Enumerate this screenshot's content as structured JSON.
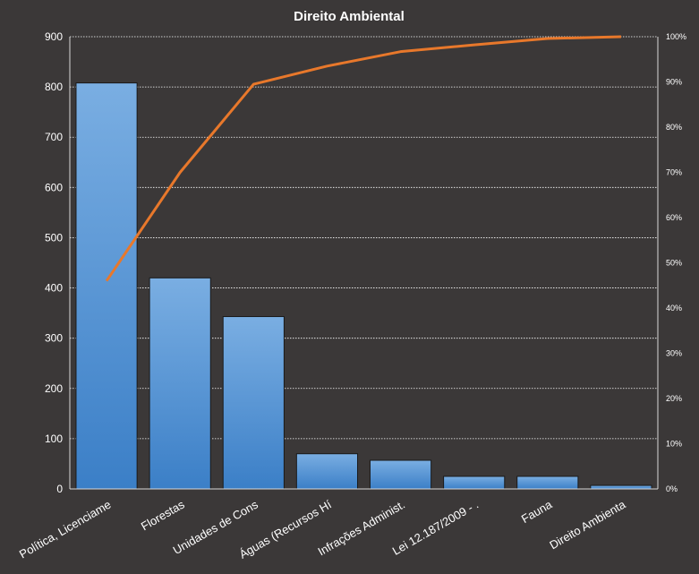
{
  "chart_data": {
    "type": "bar",
    "title": "Direito  Ambiental",
    "categories": [
      "Política, Licenciame",
      "Florestas",
      "Unidades de Cons",
      "Águas (Recursos Hí",
      "Infrações Administ.",
      "Lei 12.187/2009 -  .",
      "Fauna",
      "Direito Ambienta"
    ],
    "series": [
      {
        "type": "bar",
        "axis": "left",
        "values": [
          808,
          420,
          343,
          70,
          57,
          25,
          25,
          7
        ]
      },
      {
        "type": "line",
        "axis": "right",
        "values": [
          0.46,
          0.7,
          0.895,
          0.935,
          0.967,
          0.982,
          0.996,
          1.0
        ]
      }
    ],
    "ylim": [
      0,
      900
    ],
    "yticks": [
      "0",
      "100",
      "200",
      "300",
      "400",
      "500",
      "600",
      "700",
      "800",
      "900"
    ],
    "y2lim": [
      0,
      1
    ],
    "y2ticks": [
      "0%",
      "10%",
      "20%",
      "30%",
      "40%",
      "50%",
      "60%",
      "70%",
      "80%",
      "90%",
      "100%"
    ],
    "grid": true,
    "legend": "none",
    "colors": {
      "bar_top": "#7aaee2",
      "bar_bottom": "#3b7fc7",
      "line": "#e8782b",
      "background": "#3b3838",
      "grid": "#ffffff",
      "text": "#ffffff"
    }
  }
}
